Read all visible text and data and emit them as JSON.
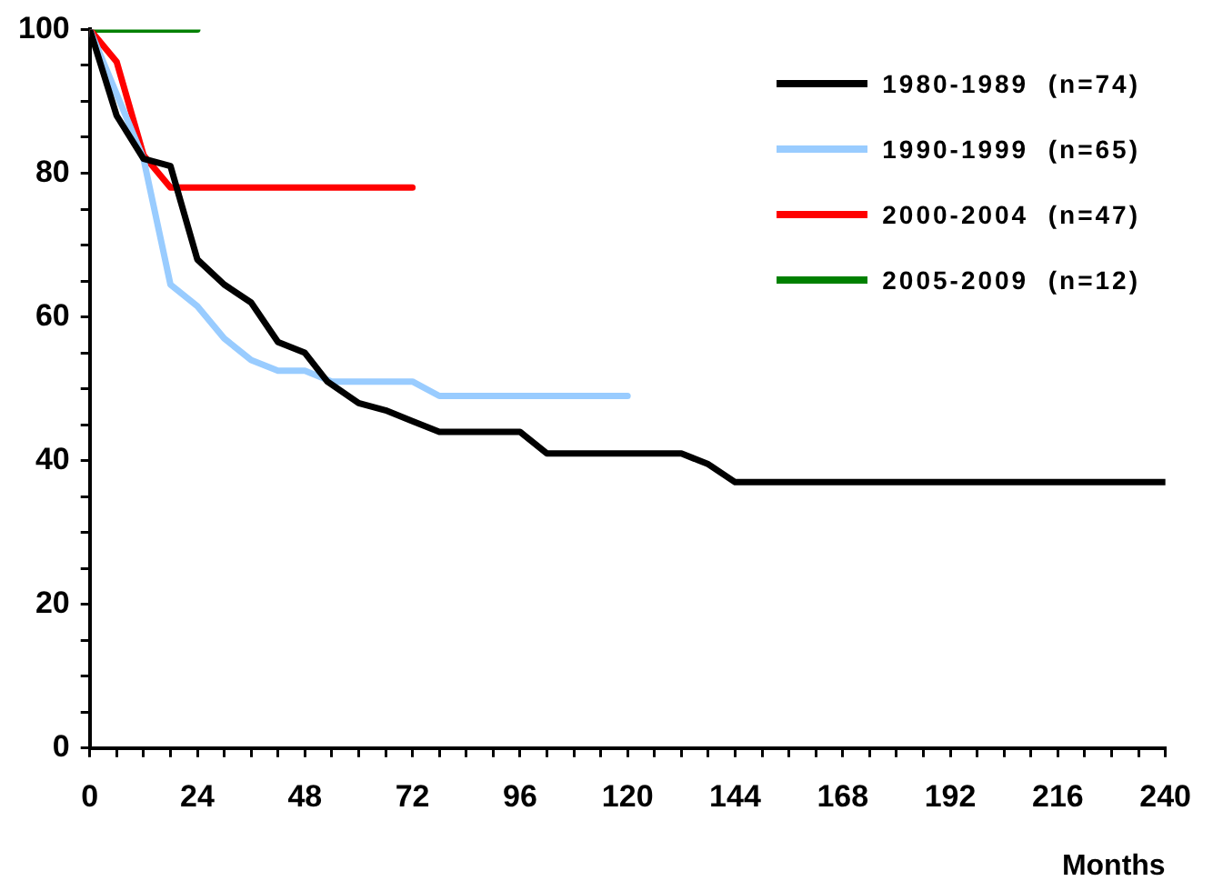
{
  "chart_data": {
    "type": "line",
    "xlabel": "Months",
    "xlim": [
      0,
      240
    ],
    "xticks": [
      0,
      {
        "value": 6,
        "label": null
      },
      {
        "value": 12,
        "label": null
      },
      {
        "value": 18,
        "label": null
      },
      24,
      {
        "value": 30,
        "label": null
      },
      {
        "value": 36,
        "label": null
      },
      {
        "value": 42,
        "label": null
      },
      48,
      {
        "value": 54,
        "label": null
      },
      {
        "value": 60,
        "label": null
      },
      {
        "value": 66,
        "label": null
      },
      72,
      {
        "value": 78,
        "label": null
      },
      {
        "value": 84,
        "label": null
      },
      {
        "value": 90,
        "label": null
      },
      96,
      {
        "value": 102,
        "label": null
      },
      {
        "value": 108,
        "label": null
      },
      {
        "value": 114,
        "label": null
      },
      120,
      {
        "value": 126,
        "label": null
      },
      {
        "value": 132,
        "label": null
      },
      {
        "value": 138,
        "label": null
      },
      144,
      {
        "value": 150,
        "label": null
      },
      {
        "value": 156,
        "label": null
      },
      {
        "value": 162,
        "label": null
      },
      168,
      {
        "value": 174,
        "label": null
      },
      {
        "value": 180,
        "label": null
      },
      {
        "value": 186,
        "label": null
      },
      192,
      {
        "value": 198,
        "label": null
      },
      {
        "value": 204,
        "label": null
      },
      {
        "value": 210,
        "label": null
      },
      216,
      {
        "value": 222,
        "label": null
      },
      {
        "value": 228,
        "label": null
      },
      {
        "value": 234,
        "label": null
      },
      240
    ],
    "ylim": [
      0,
      100
    ],
    "yticks": [
      0,
      {
        "value": 5,
        "label": null
      },
      {
        "value": 10,
        "label": null
      },
      {
        "value": 15,
        "label": null
      },
      20,
      {
        "value": 25,
        "label": null
      },
      {
        "value": 30,
        "label": null
      },
      {
        "value": 35,
        "label": null
      },
      40,
      {
        "value": 45,
        "label": null
      },
      {
        "value": 50,
        "label": null
      },
      {
        "value": 55,
        "label": null
      },
      60,
      {
        "value": 65,
        "label": null
      },
      {
        "value": 70,
        "label": null
      },
      {
        "value": 75,
        "label": null
      },
      80,
      {
        "value": 85,
        "label": null
      },
      {
        "value": 90,
        "label": null
      },
      {
        "value": 95,
        "label": null
      },
      100
    ],
    "grid": false,
    "legend": "top right",
    "marker": "none",
    "line_style": "solid",
    "series": [
      {
        "name": "1980-1989  (n=74)",
        "color": "#000000",
        "x": [
          0,
          6,
          12,
          18,
          24,
          30,
          36,
          42,
          48,
          53,
          60,
          66,
          72,
          78,
          96,
          102,
          132,
          138,
          144,
          240
        ],
        "values": [
          100,
          88,
          82,
          81,
          68,
          64.5,
          62,
          56.5,
          55,
          51,
          48,
          47,
          45.5,
          44,
          44,
          41,
          41,
          39.5,
          37,
          37
        ]
      },
      {
        "name": "1990-1999  (n=65)",
        "color": "#99ccff",
        "x": [
          0,
          12,
          18,
          24,
          30,
          36,
          42,
          48,
          54,
          72,
          78,
          120
        ],
        "values": [
          100,
          82,
          64.5,
          61.5,
          57,
          54,
          52.5,
          52.5,
          51,
          51,
          49,
          49
        ]
      },
      {
        "name": "2000-2004  (n=47)",
        "color": "#ff0000",
        "x": [
          0,
          6,
          12,
          18,
          72
        ],
        "values": [
          100,
          95.5,
          82.5,
          78,
          78
        ]
      },
      {
        "name": "2005-2009  (n=12)",
        "color": "#008000",
        "x": [
          0,
          24
        ],
        "values": [
          100,
          100
        ]
      }
    ]
  }
}
